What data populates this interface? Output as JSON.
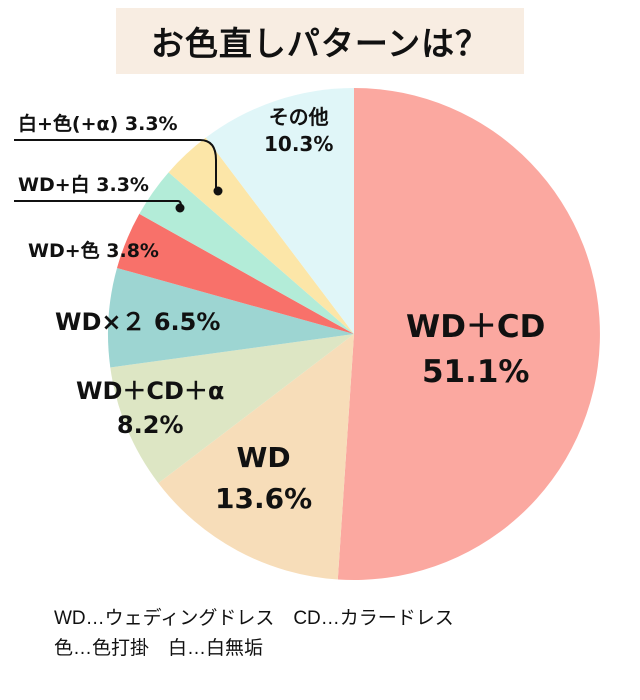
{
  "title": "お色直しパターンは？",
  "colors": {
    "title_bg": "#f8ede2"
  },
  "chart_data": {
    "type": "pie",
    "title": "お色直しパターンは？",
    "start_angle": "12 o'clock, clockwise",
    "slices": [
      {
        "label": "WD＋CD",
        "value": 51.1,
        "display": "51.1%",
        "color": "#fba8a0"
      },
      {
        "label": "WD",
        "value": 13.6,
        "display": "13.6%",
        "color": "#f7ddb9"
      },
      {
        "label": "WD＋CD＋α",
        "value": 8.2,
        "display": "8.2%",
        "color": "#dde6c4"
      },
      {
        "label": "WD×２",
        "value": 6.5,
        "display": "6.5%",
        "color": "#9dd5d2"
      },
      {
        "label": "WD+色",
        "value": 3.8,
        "display": "3.8%",
        "color": "#f8716a"
      },
      {
        "label": "WD+白",
        "value": 3.3,
        "display": "3.3%",
        "color": "#b3ecd8"
      },
      {
        "label": "白+色(+α)",
        "value": 3.3,
        "display": "3.3%",
        "color": "#fce6a8"
      },
      {
        "label": "その他",
        "value": 10.3,
        "display": "10.3%",
        "color": "#e0f6f8"
      }
    ],
    "legend_notes": [
      "WD…ウェディングドレス　CD…カラードレス",
      "色…色打掛　白…白無垢"
    ]
  },
  "labels": {
    "wdcd_name": "WD＋CD",
    "wdcd_pct": "51.1%",
    "wd_name": "WD",
    "wd_pct": "13.6%",
    "wdcda_name": "WD＋CD＋α",
    "wdcda_pct": "8.2%",
    "wdx2": "WD×２ 6.5%",
    "wdiro": "WD+色 3.8%",
    "wdshiro": "WD+白 3.3%",
    "shiroiro": "白+色(+α) 3.3%",
    "other_name": "その他",
    "other_pct": "10.3%"
  },
  "legend": {
    "line1": "WD…ウェディングドレス　CD…カラードレス",
    "line2": "色…色打掛　白…白無垢"
  }
}
